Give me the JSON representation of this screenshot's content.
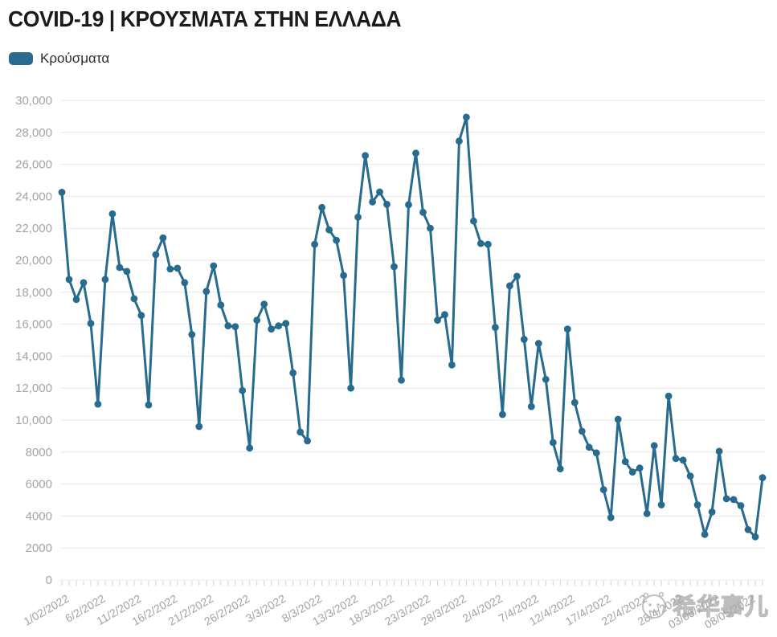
{
  "header": {
    "title": "COVID-19 | ΚΡΟΥΣΜΑΤΑ ΣΤΗΝ ΕΛΛΑΔΑ"
  },
  "legend": {
    "label": "Κρούσματα",
    "swatch_color": "#276b8e"
  },
  "watermark": {
    "text": "希华事儿",
    "icon": "cartoon-face-logo",
    "color": "#a8a8a8"
  },
  "chart_data": {
    "type": "line",
    "title": "COVID-19 | ΚΡΟΥΣΜΑΤΑ ΣΤΗΝ ΕΛΛΑΔΑ",
    "series_name": "Κρούσματα",
    "line_color": "#276b8e",
    "dot_color": "#276b8e",
    "grid": true,
    "grid_color": "#e8e8e8",
    "tick_color": "#d0d0d0",
    "axis_label_color": "#a3a3a3",
    "ylim": [
      0,
      30000
    ],
    "y_ticks": [
      {
        "value": 30000,
        "label": "30,000"
      },
      {
        "value": 28000,
        "label": "28,000"
      },
      {
        "value": 26000,
        "label": "26,000"
      },
      {
        "value": 24000,
        "label": "24,000"
      },
      {
        "value": 22000,
        "label": "22,000"
      },
      {
        "value": 20000,
        "label": "20,000"
      },
      {
        "value": 18000,
        "label": "18,000"
      },
      {
        "value": 16000,
        "label": "16,000"
      },
      {
        "value": 14000,
        "label": "14,000"
      },
      {
        "value": 12000,
        "label": "12,000"
      },
      {
        "value": 10000,
        "label": "10,000"
      },
      {
        "value": 8000,
        "label": "8000"
      },
      {
        "value": 6000,
        "label": "6000"
      },
      {
        "value": 4000,
        "label": "4000"
      },
      {
        "value": 2000,
        "label": "2000"
      },
      {
        "value": 0,
        "label": "0"
      }
    ],
    "x_tick_every": 5,
    "x_tick_labels": [
      "1/02/2022",
      "6/2/2022",
      "11/2/2022",
      "16/2/2022",
      "21/2/2022",
      "26/2/2022",
      "3/3/2022",
      "8/3/2022",
      "13/3/2022",
      "18/3/2022",
      "23/3/2022",
      "28/3/2022",
      "2/4/2022",
      "7/4/2022",
      "12/4/2022",
      "17/4/2022",
      "22/4/2022",
      "28/4/2022",
      "03/05/2022",
      "08/05/2022"
    ],
    "values": [
      24250,
      18800,
      17550,
      18600,
      16050,
      11000,
      18800,
      22900,
      19550,
      19300,
      17600,
      16550,
      10950,
      20350,
      21400,
      19450,
      19500,
      18600,
      15350,
      9600,
      18050,
      19650,
      17200,
      15900,
      15850,
      11850,
      8250,
      16250,
      17250,
      15700,
      15900,
      16050,
      12950,
      9250,
      8700,
      21000,
      23300,
      21900,
      21250,
      19050,
      12000,
      22700,
      26550,
      23650,
      24270,
      23500,
      19600,
      12500,
      23470,
      26700,
      23000,
      22000,
      16250,
      16600,
      13450,
      27450,
      28950,
      22450,
      21050,
      21000,
      15800,
      10350,
      18400,
      19000,
      15050,
      10850,
      14800,
      12550,
      8600,
      6950,
      15700,
      11100,
      9300,
      8300,
      7950,
      5650,
      3900,
      10050,
      7400,
      6750,
      7000,
      4150,
      8400,
      4700,
      11500,
      7600,
      7500,
      6500,
      4700,
      2850,
      4250,
      8050,
      5080,
      5030,
      4650,
      3150,
      2700,
      6400
    ]
  }
}
